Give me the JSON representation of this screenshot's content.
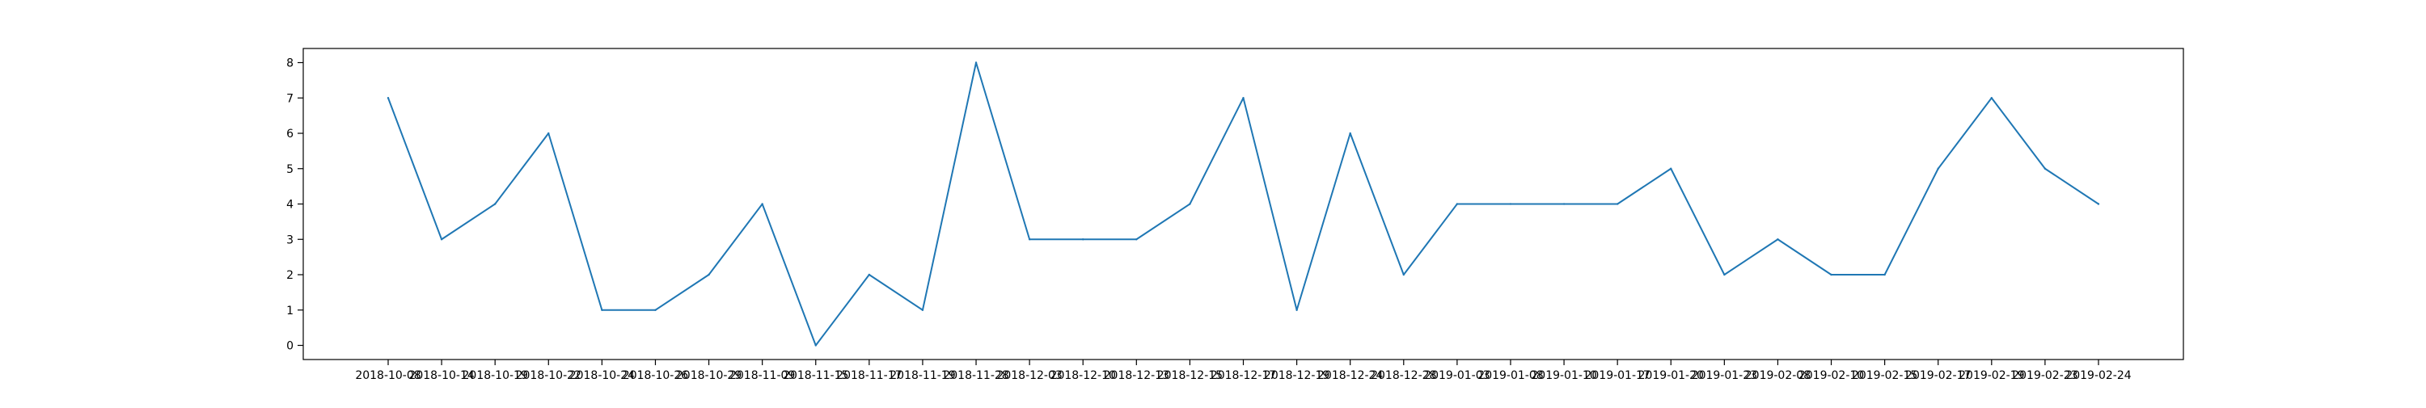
{
  "chart_data": {
    "type": "line",
    "x": [
      "2018-10-08",
      "2018-10-14",
      "2018-10-19",
      "2018-10-22",
      "2018-10-24",
      "2018-10-26",
      "2018-10-29",
      "2018-11-09",
      "2018-11-15",
      "2018-11-17",
      "2018-11-19",
      "2018-11-28",
      "2018-12-03",
      "2018-12-10",
      "2018-12-13",
      "2018-12-15",
      "2018-12-17",
      "2018-12-19",
      "2018-12-24",
      "2018-12-28",
      "2019-01-03",
      "2019-01-08",
      "2019-01-10",
      "2019-01-17",
      "2019-01-20",
      "2019-01-23",
      "2019-02-08",
      "2019-02-10",
      "2019-02-15",
      "2019-02-17",
      "2019-02-19",
      "2019-02-23",
      "2019-02-24"
    ],
    "series": [
      {
        "values": [
          7,
          3,
          4,
          6,
          1,
          1,
          2,
          4,
          0,
          2,
          1,
          8,
          3,
          3,
          3,
          4,
          7,
          1,
          6,
          2,
          4,
          4,
          4,
          4,
          5,
          2,
          3,
          2,
          2,
          5,
          7,
          5,
          4
        ],
        "color": "#1f77b4"
      }
    ],
    "yticks": [
      0,
      1,
      2,
      3,
      4,
      5,
      6,
      7,
      8
    ],
    "ylim": [
      -0.4,
      8.4
    ],
    "grid": false,
    "title": "",
    "xlabel": "",
    "ylabel": ""
  }
}
